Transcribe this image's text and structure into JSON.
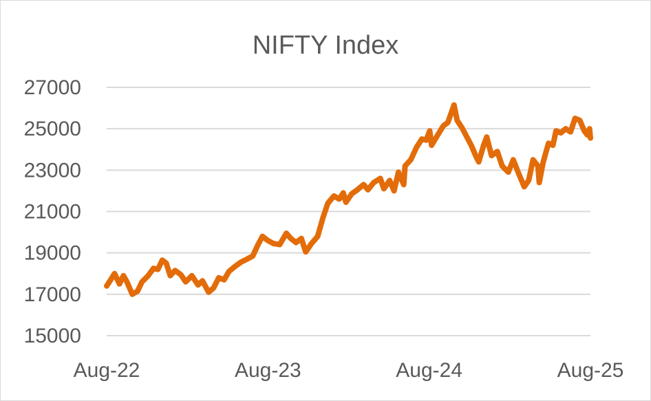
{
  "chart_data": {
    "type": "line",
    "title": "NIFTY Index",
    "xlabel": "",
    "ylabel": "",
    "x_tick_labels": [
      "Aug-22",
      "Aug-23",
      "Aug-24",
      "Aug-25"
    ],
    "y_tick_labels": [
      "15000",
      "17000",
      "19000",
      "21000",
      "23000",
      "25000",
      "27000"
    ],
    "ylim": [
      15000,
      27000
    ],
    "xlim": [
      "2022-08-01",
      "2025-08-01"
    ],
    "grid": true,
    "legend": "none",
    "series": [
      {
        "color": "#E36C0A",
        "points": [
          [
            "2022-08-01",
            17400
          ],
          [
            "2022-08-10",
            17700
          ],
          [
            "2022-08-19",
            18000
          ],
          [
            "2022-08-30",
            17500
          ],
          [
            "2022-09-08",
            17900
          ],
          [
            "2022-09-16",
            17600
          ],
          [
            "2022-09-28",
            17000
          ],
          [
            "2022-10-10",
            17150
          ],
          [
            "2022-10-20",
            17600
          ],
          [
            "2022-11-03",
            17900
          ],
          [
            "2022-11-15",
            18250
          ],
          [
            "2022-11-25",
            18200
          ],
          [
            "2022-12-05",
            18650
          ],
          [
            "2022-12-14",
            18500
          ],
          [
            "2022-12-23",
            17900
          ],
          [
            "2023-01-03",
            18150
          ],
          [
            "2023-01-16",
            17950
          ],
          [
            "2023-01-27",
            17600
          ],
          [
            "2023-02-10",
            17900
          ],
          [
            "2023-02-24",
            17450
          ],
          [
            "2023-03-06",
            17650
          ],
          [
            "2023-03-20",
            17100
          ],
          [
            "2023-03-31",
            17300
          ],
          [
            "2023-04-12",
            17800
          ],
          [
            "2023-04-24",
            17700
          ],
          [
            "2023-05-05",
            18100
          ],
          [
            "2023-05-19",
            18350
          ],
          [
            "2023-06-01",
            18550
          ],
          [
            "2023-06-15",
            18700
          ],
          [
            "2023-06-28",
            18850
          ],
          [
            "2023-07-10",
            19400
          ],
          [
            "2023-07-20",
            19800
          ],
          [
            "2023-08-01",
            19600
          ],
          [
            "2023-08-14",
            19450
          ],
          [
            "2023-08-28",
            19400
          ],
          [
            "2023-09-12",
            19950
          ],
          [
            "2023-09-22",
            19700
          ],
          [
            "2023-10-04",
            19500
          ],
          [
            "2023-10-16",
            19700
          ],
          [
            "2023-10-26",
            19050
          ],
          [
            "2023-11-08",
            19450
          ],
          [
            "2023-11-22",
            19800
          ],
          [
            "2023-12-04",
            20700
          ],
          [
            "2023-12-15",
            21400
          ],
          [
            "2023-12-29",
            21750
          ],
          [
            "2024-01-10",
            21600
          ],
          [
            "2024-01-19",
            21900
          ],
          [
            "2024-01-25",
            21450
          ],
          [
            "2024-02-07",
            21850
          ],
          [
            "2024-02-20",
            22050
          ],
          [
            "2024-03-05",
            22300
          ],
          [
            "2024-03-15",
            22050
          ],
          [
            "2024-03-28",
            22400
          ],
          [
            "2024-04-12",
            22600
          ],
          [
            "2024-04-20",
            22100
          ],
          [
            "2024-05-03",
            22500
          ],
          [
            "2024-05-13",
            22000
          ],
          [
            "2024-05-23",
            22900
          ],
          [
            "2024-06-04",
            22300
          ],
          [
            "2024-06-07",
            23200
          ],
          [
            "2024-06-20",
            23500
          ],
          [
            "2024-07-03",
            24100
          ],
          [
            "2024-07-15",
            24500
          ],
          [
            "2024-07-25",
            24450
          ],
          [
            "2024-08-02",
            24900
          ],
          [
            "2024-08-06",
            24200
          ],
          [
            "2024-08-20",
            24700
          ],
          [
            "2024-09-02",
            25150
          ],
          [
            "2024-09-12",
            25300
          ],
          [
            "2024-09-26",
            26150
          ],
          [
            "2024-10-03",
            25400
          ],
          [
            "2024-10-14",
            25050
          ],
          [
            "2024-10-25",
            24600
          ],
          [
            "2024-11-04",
            24200
          ],
          [
            "2024-11-14",
            23700
          ],
          [
            "2024-11-21",
            23400
          ],
          [
            "2024-12-02",
            24200
          ],
          [
            "2024-12-09",
            24600
          ],
          [
            "2024-12-20",
            23700
          ],
          [
            "2025-01-02",
            23900
          ],
          [
            "2025-01-13",
            23200
          ],
          [
            "2025-01-27",
            22900
          ],
          [
            "2025-02-07",
            23500
          ],
          [
            "2025-02-20",
            22800
          ],
          [
            "2025-03-04",
            22200
          ],
          [
            "2025-03-14",
            22500
          ],
          [
            "2025-03-24",
            23500
          ],
          [
            "2025-04-04",
            23200
          ],
          [
            "2025-04-07",
            22400
          ],
          [
            "2025-04-16",
            23400
          ],
          [
            "2025-04-28",
            24300
          ],
          [
            "2025-05-08",
            24200
          ],
          [
            "2025-05-15",
            24900
          ],
          [
            "2025-05-26",
            24800
          ],
          [
            "2025-06-06",
            25000
          ],
          [
            "2025-06-17",
            24850
          ],
          [
            "2025-06-27",
            25500
          ],
          [
            "2025-07-08",
            25400
          ],
          [
            "2025-07-18",
            24900
          ],
          [
            "2025-07-25",
            24700
          ],
          [
            "2025-07-30",
            25000
          ],
          [
            "2025-08-01",
            24550
          ]
        ]
      }
    ]
  }
}
